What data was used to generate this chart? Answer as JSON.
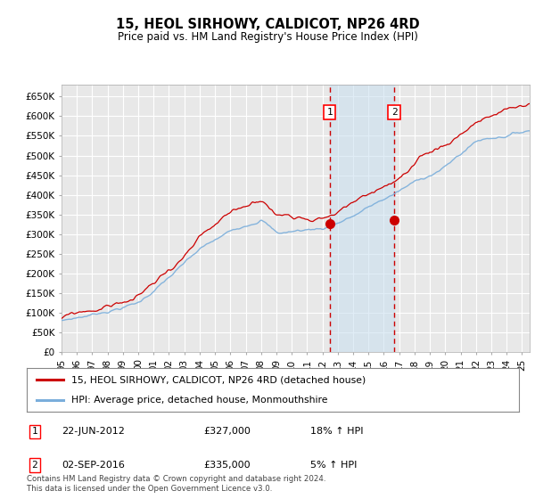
{
  "title": "15, HEOL SIRHOWY, CALDICOT, NP26 4RD",
  "subtitle": "Price paid vs. HM Land Registry's House Price Index (HPI)",
  "ylim": [
    0,
    680000
  ],
  "xlim_start": 1995.0,
  "xlim_end": 2025.5,
  "sale1_date": 2012.47,
  "sale1_label": "1",
  "sale1_price": 327000,
  "sale2_date": 2016.67,
  "sale2_label": "2",
  "sale2_price": 335000,
  "legend_line1": "15, HEOL SIRHOWY, CALDICOT, NP26 4RD (detached house)",
  "legend_line2": "HPI: Average price, detached house, Monmouthshire",
  "footer": "Contains HM Land Registry data © Crown copyright and database right 2024.\nThis data is licensed under the Open Government Licence v3.0.",
  "hpi_color": "#7aaedb",
  "price_color": "#cc0000",
  "bg_color": "#ffffff",
  "plot_bg_color": "#e8e8e8",
  "grid_color": "#ffffff",
  "shade_color": "#c8dff0"
}
